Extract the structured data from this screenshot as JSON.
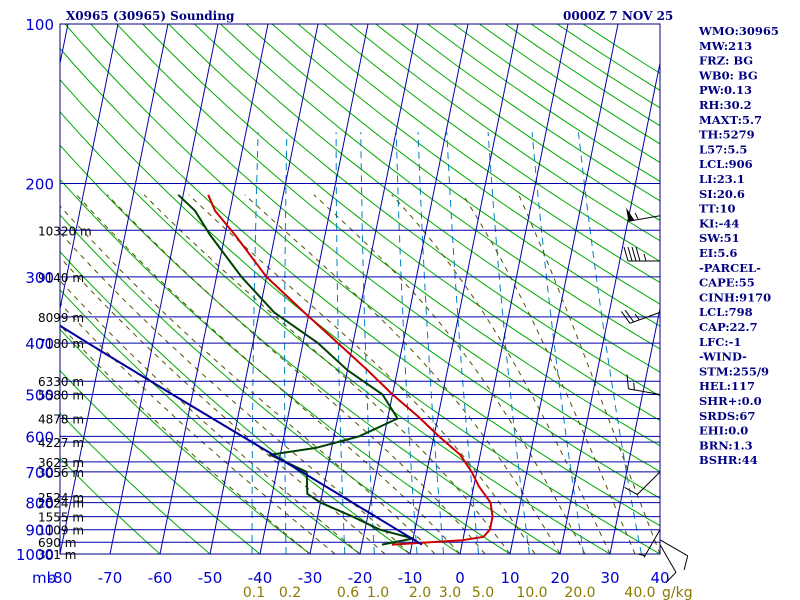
{
  "header": {
    "station_title": "X0965 (30965) Sounding",
    "valid_time": "0000Z  7 NOV 25"
  },
  "indices": [
    "WMO:30965",
    "MW:213",
    "FRZ: BG",
    "WB0: BG",
    "PW:0.13",
    "RH:30.2",
    "MAXT:5.7",
    "TH:5279",
    "L57:5.5",
    "LCL:906",
    "LI:23.1",
    "SI:20.6",
    "TT:10",
    "KI:-44",
    "SW:51",
    "EI:5.6",
    "-PARCEL-",
    "CAPE:55",
    "CINH:9170",
    "LCL:798",
    "CAP:22.7",
    "LFC:-1",
    "-WIND-",
    "STM:255/9",
    "HEL:117",
    "SHR+:0.0",
    "SRDS:67",
    "EHI:0.0",
    "BRN:1.3",
    "BSHR:44"
  ],
  "chart_data": {
    "type": "line",
    "title": "X0965 (30965) Sounding",
    "diagram": "Skew-T log-P",
    "y_unit_label": "mb",
    "pressure_ticks": [
      "100",
      "200",
      "300",
      "400",
      "500",
      "600",
      "700",
      "800",
      "900",
      "1000"
    ],
    "pressure_axis": {
      "scale": "log",
      "range_mb": [
        100,
        1000
      ]
    },
    "temperature_ticks": [
      "-80",
      "-70",
      "-60",
      "-50",
      "-40",
      "-30",
      "-20",
      "-10",
      "0",
      "10",
      "20",
      "30",
      "40"
    ],
    "temperature_axis": {
      "range_C_at_surface": [
        -80,
        40
      ]
    },
    "mixing_ratio_ticks": [
      "0.1",
      "0.2",
      "0.6",
      "1.0",
      "2.0",
      "3.0",
      "5.0",
      "10.0",
      "20.0",
      "40.0"
    ],
    "mixing_ratio_unit": "g/kg",
    "height_labels": [
      {
        "p": 245,
        "label": "10320 m"
      },
      {
        "p": 300,
        "label": "9140 m"
      },
      {
        "p": 357,
        "label": "8099 m"
      },
      {
        "p": 400,
        "label": "7180 m"
      },
      {
        "p": 472,
        "label": "6330 m"
      },
      {
        "p": 500,
        "label": "5580 m"
      },
      {
        "p": 555,
        "label": "4878 m"
      },
      {
        "p": 615,
        "label": "4227 m"
      },
      {
        "p": 670,
        "label": "3623 m"
      },
      {
        "p": 700,
        "label": "3056 m"
      },
      {
        "p": 780,
        "label": "2524 m"
      },
      {
        "p": 800,
        "label": "2024 m"
      },
      {
        "p": 850,
        "label": "1555 m"
      },
      {
        "p": 900,
        "label": "1109 m"
      },
      {
        "p": 950,
        "label": "690 m"
      },
      {
        "p": 1000,
        "label": "301 m"
      }
    ],
    "series": [
      {
        "kind": "temperature",
        "color": "#cc0000",
        "points": [
          {
            "p": 960,
            "t": -14
          },
          {
            "p": 942,
            "t": 0
          },
          {
            "p": 928,
            "t": 4
          },
          {
            "p": 900,
            "t": 5
          },
          {
            "p": 850,
            "t": 5
          },
          {
            "p": 800,
            "t": 4
          },
          {
            "p": 745,
            "t": 1
          },
          {
            "p": 700,
            "t": -1
          },
          {
            "p": 650,
            "t": -4
          },
          {
            "p": 600,
            "t": -9
          },
          {
            "p": 550,
            "t": -14
          },
          {
            "p": 500,
            "t": -20
          },
          {
            "p": 450,
            "t": -26
          },
          {
            "p": 400,
            "t": -33
          },
          {
            "p": 350,
            "t": -41
          },
          {
            "p": 300,
            "t": -50
          },
          {
            "p": 250,
            "t": -58
          },
          {
            "p": 225,
            "t": -63
          },
          {
            "p": 210,
            "t": -65
          }
        ]
      },
      {
        "kind": "dewpoint",
        "color": "#004000",
        "points": [
          {
            "p": 960,
            "t": -16
          },
          {
            "p": 935,
            "t": -10
          },
          {
            "p": 900,
            "t": -17
          },
          {
            "p": 850,
            "t": -23
          },
          {
            "p": 800,
            "t": -30
          },
          {
            "p": 770,
            "t": -33
          },
          {
            "p": 700,
            "t": -34
          },
          {
            "p": 650,
            "t": -42
          },
          {
            "p": 630,
            "t": -33
          },
          {
            "p": 600,
            "t": -25
          },
          {
            "p": 555,
            "t": -18
          },
          {
            "p": 500,
            "t": -22
          },
          {
            "p": 450,
            "t": -30
          },
          {
            "p": 400,
            "t": -37
          },
          {
            "p": 350,
            "t": -47
          },
          {
            "p": 300,
            "t": -55
          },
          {
            "p": 250,
            "t": -63
          },
          {
            "p": 225,
            "t": -67
          },
          {
            "p": 210,
            "t": -71
          }
        ]
      },
      {
        "kind": "parcel",
        "color": "#000099",
        "points": [
          {
            "p": 960,
            "t": -8
          },
          {
            "p": 700,
            "t": -35
          },
          {
            "p": 500,
            "t": -64
          },
          {
            "p": 400,
            "t": -83
          },
          {
            "p": 300,
            "t": -107
          }
        ]
      }
    ],
    "wind_barbs": [
      {
        "p": 230,
        "dir": 260,
        "kt": 55
      },
      {
        "p": 280,
        "dir": 270,
        "kt": 45
      },
      {
        "p": 350,
        "dir": 250,
        "kt": 25
      },
      {
        "p": 500,
        "dir": 280,
        "kt": 15
      },
      {
        "p": 700,
        "dir": 225,
        "kt": 10
      },
      {
        "p": 900,
        "dir": 210,
        "kt": 5
      },
      {
        "p": 940,
        "dir": 120,
        "kt": 10
      },
      {
        "p": 960,
        "dir": 150,
        "kt": 10
      }
    ],
    "grid": true,
    "colors": {
      "frame": "#000080",
      "tick_text": "#0000cc",
      "dry_adiabat": "#00aa00",
      "moist_adiabat": "#505000",
      "mixing_ratio": "#0080c0",
      "mixing_ratio_text": "#8b7a00"
    }
  }
}
